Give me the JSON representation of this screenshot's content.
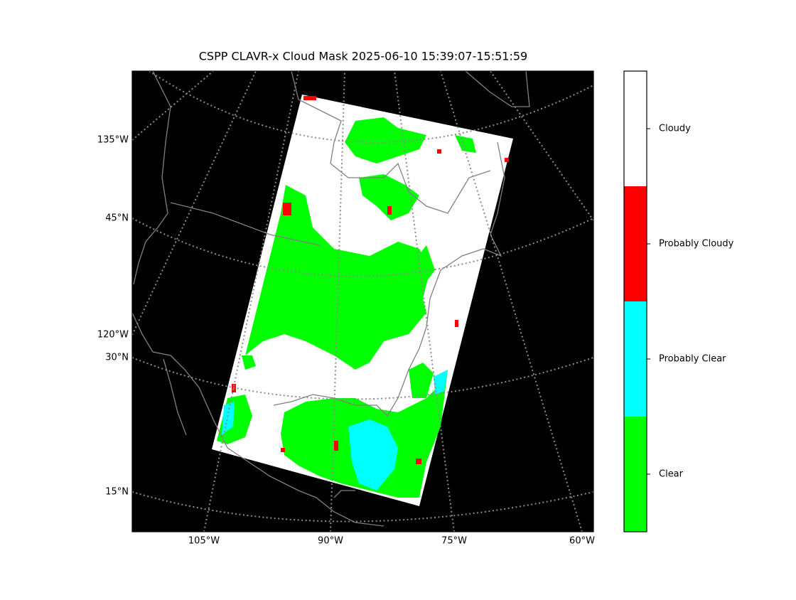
{
  "title": "CSPP CLAVR-x Cloud Mask 2025-06-10 15:39:07-15:51:59",
  "map": {
    "left_labels": [
      "135°W",
      "45°N",
      "120°W",
      "30°N",
      "15°N"
    ],
    "bottom_labels": [
      "105°W",
      "90°W",
      "75°W",
      "60°W"
    ]
  },
  "colorbar": {
    "categories": [
      {
        "label": "Clear",
        "color": "#00ff00"
      },
      {
        "label": "Probably Clear",
        "color": "#00ffff"
      },
      {
        "label": "Probably Cloudy",
        "color": "#ff0000"
      },
      {
        "label": "Cloudy",
        "color": "#ffffff"
      }
    ]
  }
}
